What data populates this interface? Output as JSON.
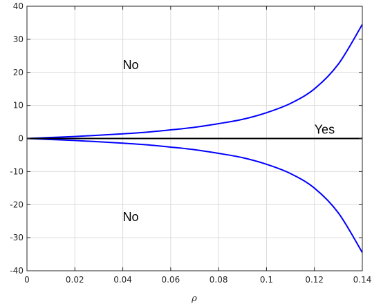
{
  "chart_data": {
    "type": "line",
    "title": "",
    "xlabel": "ρ",
    "ylabel": "",
    "xlim": [
      0,
      0.14
    ],
    "ylim": [
      -40,
      40
    ],
    "grid": true,
    "x_ticks": [
      0,
      0.02,
      0.04,
      0.06,
      0.08,
      0.1,
      0.12,
      0.14
    ],
    "x_tick_labels": [
      "0",
      "0.02",
      "0.04",
      "0.06",
      "0.08",
      "0.1",
      "0.12",
      "0.14"
    ],
    "y_ticks": [
      -40,
      -30,
      -20,
      -10,
      0,
      10,
      20,
      30,
      40
    ],
    "y_tick_labels": [
      "-40",
      "-30",
      "-20",
      "-10",
      "0",
      "10",
      "20",
      "30",
      "40"
    ],
    "x": [
      0,
      0.01,
      0.02,
      0.03,
      0.04,
      0.05,
      0.06,
      0.07,
      0.08,
      0.09,
      0.1,
      0.11,
      0.12,
      0.13,
      0.14
    ],
    "series": [
      {
        "color": "#0000ff",
        "values": [
          0,
          0.3,
          0.6,
          1.0,
          1.4,
          1.9,
          2.6,
          3.4,
          4.5,
          5.8,
          7.8,
          10.6,
          15.0,
          22.5,
          34.5
        ]
      },
      {
        "color": "#0000ff",
        "values": [
          0,
          -0.3,
          -0.6,
          -1.0,
          -1.4,
          -1.9,
          -2.6,
          -3.4,
          -4.5,
          -5.8,
          -7.8,
          -10.6,
          -15.0,
          -22.5,
          -34.5
        ]
      },
      {
        "color": "#000000",
        "values": [
          0,
          0,
          0,
          0,
          0,
          0,
          0,
          0,
          0,
          0,
          0,
          0,
          0,
          0,
          0
        ]
      }
    ],
    "annotations": [
      {
        "text": "No",
        "x": 0.04,
        "y": 21
      },
      {
        "text": "Yes",
        "x": 0.12,
        "y": 1.5
      },
      {
        "text": "No",
        "x": 0.04,
        "y": -25
      }
    ]
  }
}
